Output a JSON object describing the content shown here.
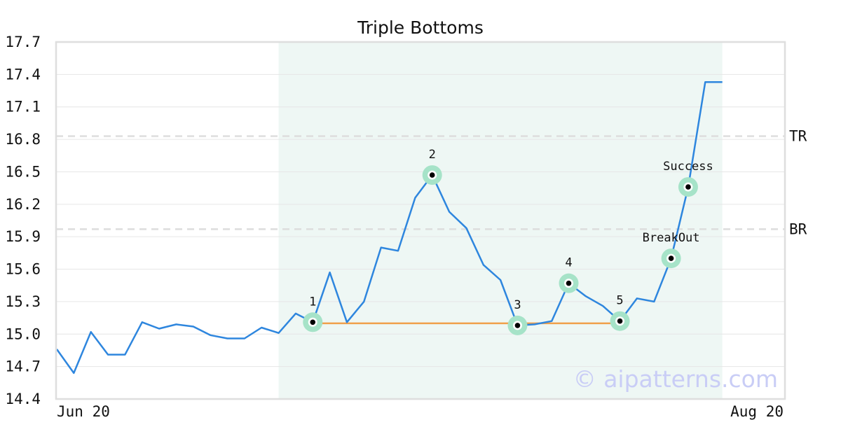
{
  "chart_data": {
    "type": "line",
    "title": "Triple Bottoms",
    "xlabel": "",
    "ylabel": "",
    "ylim": [
      14.4,
      17.7
    ],
    "yticks": [
      14.4,
      14.7,
      15.0,
      15.3,
      15.6,
      15.9,
      16.2,
      16.5,
      16.8,
      17.1,
      17.4,
      17.7
    ],
    "ytick_labels": [
      "14.4",
      "14.7",
      "15.0",
      "15.3",
      "15.6",
      "15.9",
      "16.2",
      "16.5",
      "16.8",
      "17.1",
      "17.4",
      "17.7"
    ],
    "x_tick_labels": [
      {
        "index": 0,
        "label": "Jun 20"
      },
      {
        "index": 42,
        "label": "Aug 20"
      }
    ],
    "grid": true,
    "series": [
      {
        "color": "#2e86de",
        "values": [
          14.86,
          14.64,
          15.02,
          14.81,
          14.81,
          15.11,
          15.05,
          15.09,
          15.07,
          14.99,
          14.96,
          14.96,
          15.06,
          15.01,
          15.19,
          15.11,
          15.57,
          15.11,
          15.3,
          15.8,
          15.77,
          16.26,
          16.47,
          16.13,
          15.98,
          15.64,
          15.5,
          15.08,
          15.09,
          15.12,
          15.47,
          15.35,
          15.26,
          15.12,
          15.33,
          15.3,
          15.7,
          16.36,
          17.33,
          17.33
        ]
      }
    ],
    "pattern_region": {
      "start_index": 13,
      "end_index": 39,
      "color": "#eef7f4"
    },
    "horizontal_lines": [
      {
        "label": "TR",
        "value": 16.83,
        "style": "dashed",
        "color": "#dddddd"
      },
      {
        "label": "BR",
        "value": 15.97,
        "style": "dashed",
        "color": "#dddddd"
      }
    ],
    "support_line": {
      "start_index": 15,
      "end_index": 33,
      "value": 15.1,
      "color": "#f0a04b"
    },
    "annotations": [
      {
        "label": "1",
        "index": 15,
        "value": 15.11,
        "label_pos": "above"
      },
      {
        "label": "2",
        "index": 22,
        "value": 16.47,
        "label_pos": "above"
      },
      {
        "label": "3",
        "index": 27,
        "value": 15.08,
        "label_pos": "above"
      },
      {
        "label": "4",
        "index": 30,
        "value": 15.47,
        "label_pos": "above"
      },
      {
        "label": "5",
        "index": 33,
        "value": 15.12,
        "label_pos": "above"
      },
      {
        "label": "BreakOut",
        "index": 36,
        "value": 15.7,
        "label_pos": "above"
      },
      {
        "label": "Success",
        "index": 37,
        "value": 16.36,
        "label_pos": "above"
      }
    ],
    "marker_color": "#a6e3c8",
    "watermark": "© aipatterns.com"
  }
}
